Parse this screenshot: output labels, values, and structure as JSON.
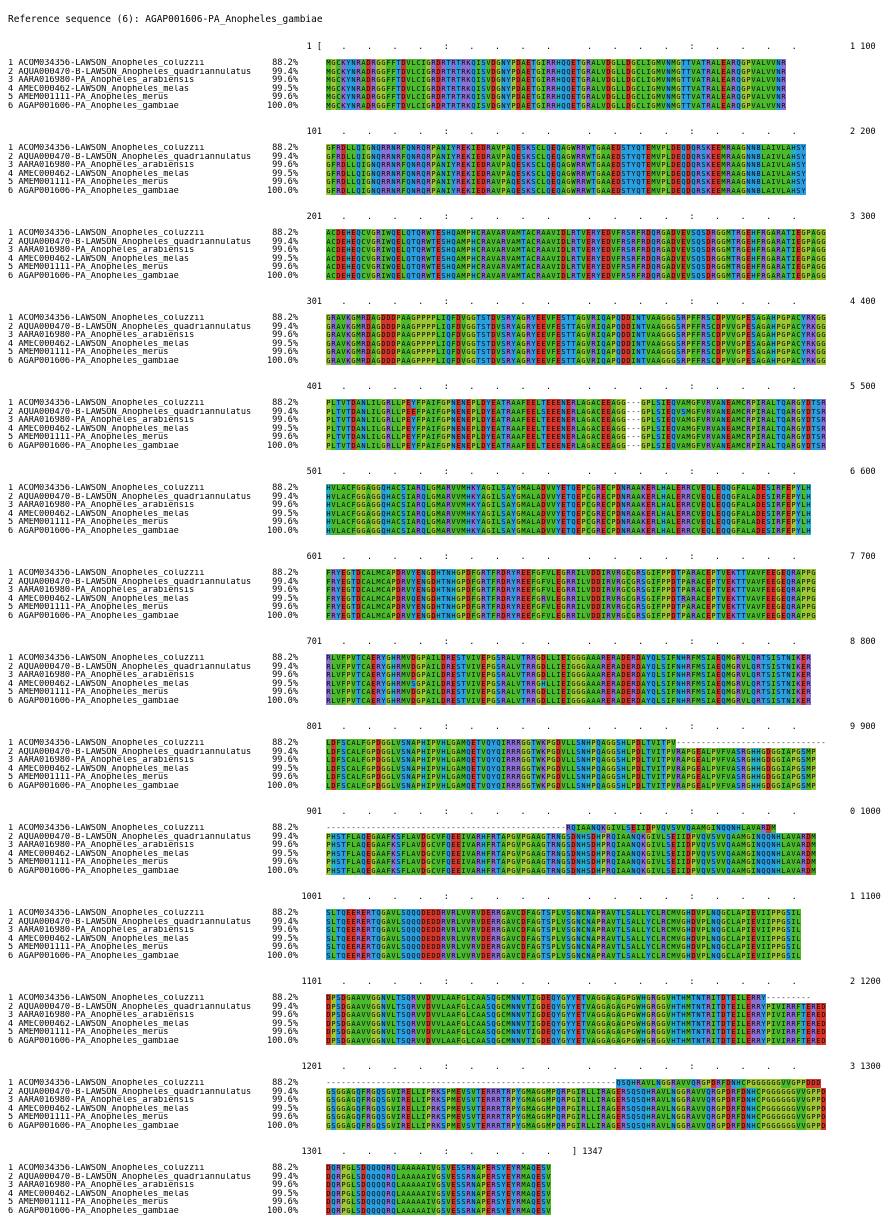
{
  "reference_label": "Reference sequence (6): AGAP001606-PA_Anopheles_gambiae",
  "sequences": [
    {
      "num": "1",
      "name": "ACOM034356-LAWSON_Anopheles_coluzzii",
      "pct": "88.2%"
    },
    {
      "num": "2",
      "name": "AQUA000470-B-LAWSON_Anopheles_quadriannulatus",
      "pct": "99.4%"
    },
    {
      "num": "3",
      "name": "AARA016980-PA_Anopheles_arabiensis",
      "pct": "99.6%"
    },
    {
      "num": "4",
      "name": "AMEC000462-LAWSON_Anopheles_melas",
      "pct": "99.5%"
    },
    {
      "num": "5",
      "name": "AMEM001111-PA_Anopheles_merus",
      "pct": "99.6%"
    },
    {
      "num": "6",
      "name": "AGAP001606-PA_Anopheles_gambiae",
      "pct": "100.0%"
    }
  ],
  "blocks": [
    {
      "start": "1",
      "end": "1 100",
      "seq": "MGCKYNRADRGGFFTDVLCIGRDRTRTRKQISVDGNYPDAETGIRRHQQETGRALVDGLLDGCLIGMVNMGTTVATRALEARQGPVALVVNR",
      "start_bracket": true
    },
    {
      "start": "101",
      "end": "2 200",
      "seq": "GFRDLLQIGNQRRNRFQNRQRPANIYREKIEDRAVPAQESKSCLQEQAGWRRWTGAAEDSTYQTEMVPLDEQDQRSKEEMRAAGNNBLAIVLAHSY"
    },
    {
      "start": "201",
      "end": "3 300",
      "seq": "ACDEHEQCVGRIWQELQTQRWTESHQAMPHCRAVARVAMTACRAAVIDLRTVERYEDVFRSRFRDQRGADVEVSQSDRGGMTRGEHFRGARATIEGPAGGV"
    },
    {
      "start": "301",
      "end": "4 400",
      "seq": "GRAVKGMRDAGDDDPAAGPPPPLIQFDVGGTSTDVSRYAGRYEEVFESTTAGVRIQAPQDDINTVAAGGGSRPFFRSCDPVVGPESAGAHPGPACYRKGG"
    },
    {
      "start": "401",
      "end": "5 500",
      "seq": "PLTVTDANLILGRLLPEYFPAIFGPNENEPLDYEATRAAFEELTEEENERLAGACEEAGG---GPLSIEQVAMGFVRVANEAMCRPIRALTQARGYDTSR"
    },
    {
      "start": "501",
      "end": "6 600",
      "seq": "HVLACFGGAGGQHACSIARQLGMARVVMHKYAGILSAYGMALADVVYETQEPCGRECPDNRAAKERLHALERRCVEQLEQQGFALADESIRFEPYLH"
    },
    {
      "start": "601",
      "end": "7 700",
      "seq": "FRYEGTDCALMCAPDRVYENGDHTNHGPDFGRTFRDRYREEFGFVLEGRRILVDDIRVRGCGRSGIFPPDTPARACEPTVEKTTVAVFEEGEQRAPPG"
    },
    {
      "start": "701",
      "end": "8 800",
      "seq": "RLVFPVTCAERYGHRMVDGPAILDRESTVIVEPGSRALVTRRGDLLIEIGGGAAARERADERDAYQLSIFNHRFMSIAEQMGRVLQRTSISTNIKER"
    },
    {
      "start": "801",
      "end": "9 900",
      "seq": "LDFSCALFGPDGGLVSNAPHIPVHLGAMQETVQYQIRRRGGTWKPGDVLLSNHPQAGGSHLPDLTVITPV------------------------------"
    },
    {
      "start": "901",
      "end": "0 1000",
      "seq": "------------------------------------------------RQIAANQKGIVLSEIIDPVQVSVVQAAMGINQQNHLAVARDM"
    },
    {
      "start": "1001",
      "end": "1 1100",
      "seq": "SLTQEERERTQGAVLSQQQDEDDRVRLVVRVDERRGAVCDFAGTSPLVSGNCNAPRAVTLSALLYCLRCMVGHDVPLNQGCLAPIEVIIPPGSIL"
    },
    {
      "start": "1101",
      "end": "2 1200",
      "seq": "DPSDGAAVVGGNVLTSQRVVDVVLAAFGLCAASQGCMNNVTIGDEQYGYYETVAGGAGAGPGWHGRGGVHTHMTNTRITDTEILERRY---------"
    },
    {
      "start": "1201",
      "end": "3 1300",
      "seq": "----------------------------------------------------------QSQHRAVLNGGRAVVQRGPDRFDNHCPGGGGGGVVGPPDDD"
    },
    {
      "start": "1301",
      "end": "] 1347",
      "seq": "DQRPGLSDQQQQRQLAAAAAIVGSVESSRNAPERSYEYRMAQESV",
      "end_bracket": true
    }
  ],
  "block_mods": [
    {
      "row": 0,
      "blocks": [
        8,
        9,
        11,
        12
      ],
      "mode": "alt"
    },
    {
      "row": 1,
      "blocks": [
        4
      ],
      "mode": "mut"
    },
    {
      "row": 3,
      "blocks": [
        6,
        7
      ],
      "mode": "mut"
    }
  ],
  "alt_seqs": {
    "8": "LDFSCALFGPDGGLVSNAPHIPVHLGAMQETVQYQIRRRGGTWKPGDVLLSNHPQAGGSHLPDLTVITPVRAPGEALPVFVASRGHHGDGGIAPGSMP",
    "9": "PHSTFLAQEGAAFKSFLAVDGCVFQEEIVARHFRTAPGVPGAAGTRNGSDNHSDHPRQIAANQKGIVLSEIIDPVQVSVVQAAMGINQQNHLAVARDM",
    "11": "DPSDGAAVVGGNVLTSQRVVDVVLAAFGLCAASQGCMNNVTIGDEQYGYYETVAGGAGAGPGWHGRGGVHTHMTNTRITDTEILERRYPIVIRRFTERED",
    "12": "GSGGAGQFRGQSGVIRELLIPRKSPMEVSVTERRRTRPYGMAGGMPQRPGIRLLIRAGERSQSQHRAVLNGGRAVVQRGPDRFDNHCPGGGGGGVVGPPDDD"
  },
  "residue_colors": {
    "A": "#4bbb2d",
    "V": "#4bbb2d",
    "L": "#4bbb2d",
    "I": "#4bbb2d",
    "M": "#4bbb2d",
    "F": "#4bbb2d",
    "W": "#4bbb2d",
    "C": "#4bbb2d",
    "G": "#9cc633",
    "P": "#9cc633",
    "S": "#2a9fe0",
    "T": "#2a9fe0",
    "N": "#2a9fe0",
    "Q": "#2a9fe0",
    "Y": "#2a9fe0",
    "H": "#27b3c7",
    "D": "#d9362b",
    "E": "#d9362b",
    "K": "#8e6fd8",
    "R": "#8e6fd8",
    "B": "#2a9fe0",
    "-": "#ffffff"
  },
  "ruler_marks": "   .    .    .    .    :    .    .    .    .    ",
  "legend_ok": true
}
